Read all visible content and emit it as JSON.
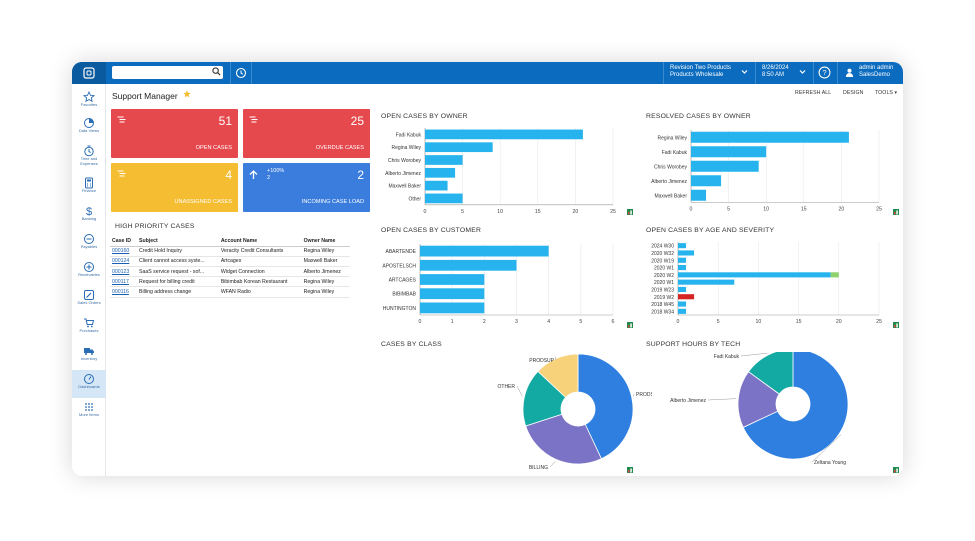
{
  "topbar": {
    "search_placeholder": "",
    "company": {
      "line1": "Revision Two Products",
      "line2": "Products Wholesale"
    },
    "date": {
      "line1": "8/26/2024",
      "line2": "8:50 AM"
    },
    "user": {
      "line1": "admin admin",
      "line2": "SalesDemo"
    }
  },
  "sidebar": {
    "items": [
      {
        "label": "Favorites",
        "icon": "star-icon"
      },
      {
        "label": "Data Views",
        "icon": "pie-icon"
      },
      {
        "label": "Time and Expenses",
        "icon": "clock-icon"
      },
      {
        "label": "Finance",
        "icon": "calculator-icon"
      },
      {
        "label": "Banking",
        "icon": "dollar-icon"
      },
      {
        "label": "Payables",
        "icon": "minus-circle-icon"
      },
      {
        "label": "Receivables",
        "icon": "plus-circle-icon"
      },
      {
        "label": "Sales Orders",
        "icon": "pencil-icon"
      },
      {
        "label": "Purchases",
        "icon": "cart-icon"
      },
      {
        "label": "Inventory",
        "icon": "truck-icon"
      },
      {
        "label": "Dashboards",
        "icon": "gauge-icon"
      },
      {
        "label": "More Items",
        "icon": "grid-icon"
      }
    ],
    "active": "Dashboards"
  },
  "page": {
    "title": "Support Manager",
    "buttons": {
      "refresh": "REFRESH ALL",
      "design": "DESIGN",
      "tools": "TOOLS"
    }
  },
  "tiles": [
    {
      "value": "51",
      "label": "OPEN CASES",
      "color": "#e5484d"
    },
    {
      "value": "25",
      "label": "OVERDUE CASES",
      "color": "#e5484d"
    },
    {
      "value": "4",
      "label": "UNASSIGNED CASES",
      "color": "#f5bd32"
    },
    {
      "value": "2",
      "label": "INCOMING CASE LOAD",
      "color": "#3b7ddd",
      "extra1": "+100%",
      "extra2": "2"
    }
  ],
  "high_priority": {
    "title": "HIGH PRIORITY CASES",
    "columns": [
      "Case ID",
      "Subject",
      "Account Name",
      "Owner Name"
    ],
    "rows": [
      [
        "000160",
        "Credit Hold Inquiry",
        "Veracity Credit Consultants",
        "Regina Wiley"
      ],
      [
        "000124",
        "Client cannot access syste...",
        "Artcages",
        "Maxwell Baker"
      ],
      [
        "000123",
        "SaaS service request - sof...",
        "Widget Connection",
        "Alberto Jimenez"
      ],
      [
        "000117",
        "Request for billing credit",
        "Bibimbab Korean Restaurant",
        "Regina Wiley"
      ],
      [
        "000116",
        "Billing address change",
        "WFAN Radio",
        "Regina Wiley"
      ]
    ]
  },
  "colors": {
    "bar": "#27b4ee",
    "green": "#8fd16f",
    "red": "#d42424",
    "axis": "#888"
  },
  "chart_data": [
    {
      "type": "bar",
      "orientation": "horizontal",
      "title": "OPEN CASES BY OWNER",
      "categories": [
        "Fadi Kabuk",
        "Regina Wiley",
        "Chris Worobey",
        "Alberto Jimenez",
        "Maxwell Baker",
        "Other"
      ],
      "values": [
        21,
        9,
        5,
        4,
        3,
        5
      ],
      "xlim": [
        0,
        25
      ],
      "xticks": [
        0,
        5,
        10,
        15,
        20,
        25
      ]
    },
    {
      "type": "bar",
      "orientation": "horizontal",
      "title": "RESOLVED CASES BY OWNER",
      "categories": [
        "Regina Wiley",
        "Fadi Kabuk",
        "Chris Worobey",
        "Alberto Jimenez",
        "Maxwell Baker"
      ],
      "values": [
        21,
        10,
        9,
        4,
        2
      ],
      "xlim": [
        0,
        25
      ],
      "xticks": [
        0,
        5,
        10,
        15,
        20,
        25
      ]
    },
    {
      "type": "bar",
      "orientation": "horizontal",
      "title": "OPEN CASES BY CUSTOMER",
      "categories": [
        "ABARTENDE",
        "APOSTELSCH",
        "ARTCAGES",
        "BIBIMBAB",
        "HUNTINGTON"
      ],
      "values": [
        4,
        3,
        2,
        2,
        2
      ],
      "xlim": [
        0,
        6
      ],
      "xticks": [
        0,
        1,
        2,
        3,
        4,
        5,
        6
      ]
    },
    {
      "type": "bar",
      "orientation": "horizontal",
      "stacked": true,
      "title": "OPEN CASES BY AGE AND SEVERITY",
      "categories": [
        "2024 W30",
        "2020 W32",
        "2020 W19",
        "2020 W1",
        "2020 W2",
        "2020 W1",
        "2019 W23",
        "2019 W2",
        "2018 W45",
        "2018 W34"
      ],
      "series": [
        {
          "values": [
            1,
            2,
            1,
            1,
            19,
            7,
            1,
            0,
            1,
            1
          ],
          "color": "#27b4ee"
        },
        {
          "values": [
            0,
            0,
            0,
            0,
            1,
            0,
            0,
            0,
            0,
            0
          ],
          "color": "#8fd16f"
        },
        {
          "values": [
            0,
            0,
            0,
            0,
            0,
            0,
            0,
            2,
            0,
            0
          ],
          "color": "#d42424"
        }
      ],
      "xlim": [
        0,
        25
      ],
      "xticks": [
        0,
        5,
        10,
        15,
        20,
        25
      ]
    },
    {
      "type": "pie",
      "donut": true,
      "title": "CASES BY CLASS",
      "slices": [
        {
          "label": "PRODSUPINC",
          "value": 43,
          "color": "#2f7fe0"
        },
        {
          "label": "BILLING",
          "value": 27,
          "color": "#7b74c6"
        },
        {
          "label": "OTHER",
          "value": 17,
          "color": "#13aaa3"
        },
        {
          "label": "PRODSUP",
          "value": 13,
          "color": "#f7d27a"
        }
      ]
    },
    {
      "type": "pie",
      "donut": true,
      "title": "SUPPORT HOURS BY TECH",
      "slices": [
        {
          "label": "Zeltana Young",
          "value": 68,
          "color": "#2f7fe0"
        },
        {
          "label": "Alberto Jimenez",
          "value": 17,
          "color": "#7b74c6"
        },
        {
          "label": "Fadi Kabuk",
          "value": 15,
          "color": "#13aaa3"
        }
      ]
    }
  ]
}
